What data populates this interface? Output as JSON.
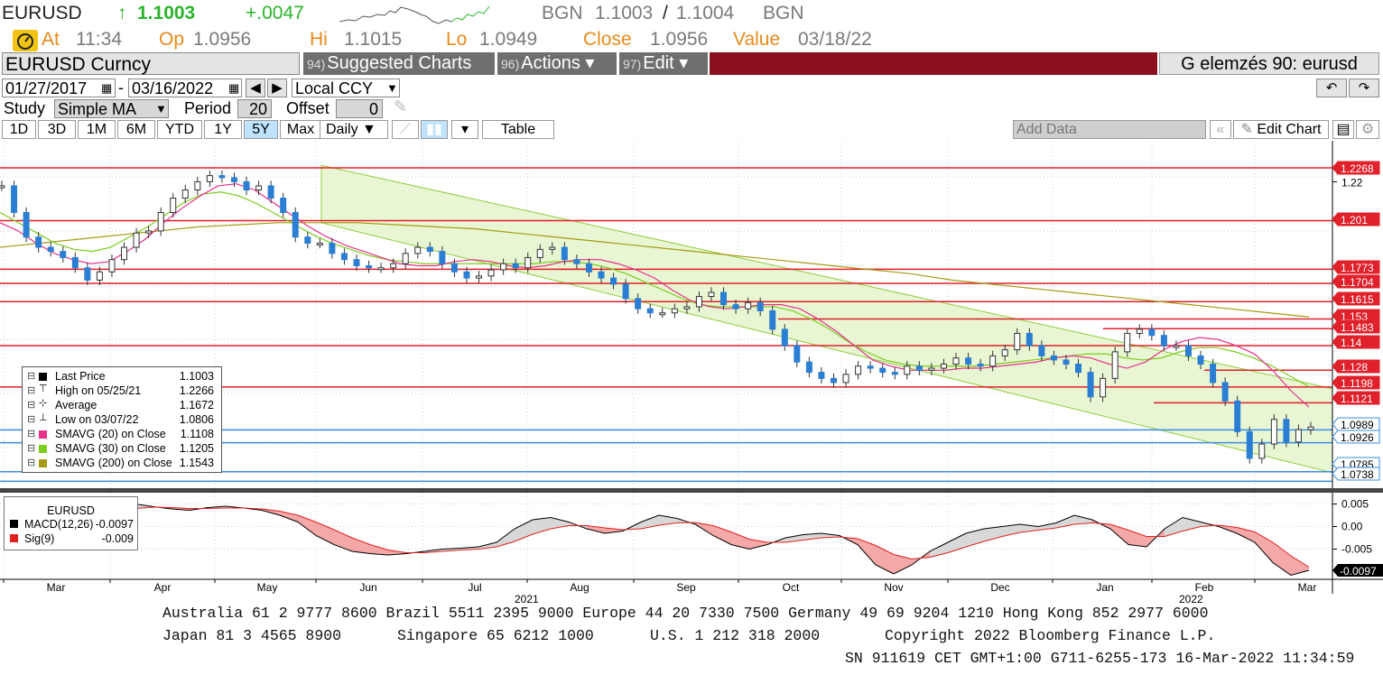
{
  "quote": {
    "ticker": "EURUSD",
    "arrow": "↑",
    "last": "1.1003",
    "change": "+.0047",
    "source": "BGN",
    "bid": "1.1003",
    "ask_sep": "/",
    "ask": "1.1004",
    "source2": "BGN",
    "at_label": "At",
    "at_value": "11:34",
    "op_label": "Op",
    "op_value": "1.0956",
    "hi_label": "Hi",
    "hi_value": "1.1015",
    "lo_label": "Lo",
    "lo_value": "1.0949",
    "close_label": "Close",
    "close_value": "1.0956",
    "value_label": "Value",
    "value_value": "03/18/22"
  },
  "toolbar": {
    "security": "EURUSD Curncy",
    "suggested_num": "94)",
    "suggested_label": "Suggested Charts",
    "actions_num": "96)",
    "actions_label": "Actions ▾",
    "edit_num": "97)",
    "edit_label": "Edit ▾",
    "analysis": "G elemzés 90: eurusd",
    "start_date": "01/27/2017",
    "end_date": "03/16/2022",
    "date_sep": "-",
    "currency": "Local CCY",
    "study_label": "Study",
    "study_value": "Simple MA",
    "period_label": "Period",
    "period_value": "20",
    "offset_label": "Offset",
    "offset_value": "0",
    "ranges": [
      "1D",
      "3D",
      "1M",
      "6M",
      "YTD",
      "1Y",
      "5Y",
      "Max"
    ],
    "active_range": "5Y",
    "frequency": "Daily ▼",
    "table_label": "Table",
    "add_data": "Add Data",
    "edit_chart": "Edit Chart"
  },
  "legend": {
    "rows": [
      {
        "name": "Last Price",
        "value": "1.1003",
        "color": "#000000"
      },
      {
        "name": "High on 05/25/21",
        "value": "1.2266",
        "color": "none"
      },
      {
        "name": "Average",
        "value": "1.1672",
        "color": "none"
      },
      {
        "name": "Low on 03/07/22",
        "value": "1.0806",
        "color": "none"
      },
      {
        "name": "SMAVG (20)  on Close",
        "value": "1.1108",
        "color": "#e8308a"
      },
      {
        "name": "SMAVG (30)  on Close",
        "value": "1.1205",
        "color": "#7ccc1c"
      },
      {
        "name": "SMAVG (200)  on Close",
        "value": "1.1543",
        "color": "#a69a10"
      }
    ]
  },
  "macd_legend": {
    "title": "EURUSD",
    "macd_name": "MACD(12,26)",
    "macd_value": "-0.0097",
    "sig_name": "Sig(9)",
    "sig_value": "-0.009"
  },
  "chart_data": [
    {
      "type": "line",
      "title": "EURUSD",
      "x_months": [
        "Mar",
        "Apr",
        "May",
        "Jun",
        "Jul",
        "Aug",
        "Sep",
        "Oct",
        "Nov",
        "Dec",
        "Jan",
        "Feb",
        "Mar"
      ],
      "year_labels": [
        "2021",
        "2022"
      ],
      "y_ticks": [
        "1.22"
      ],
      "ylim": [
        1.07,
        1.24
      ],
      "last_price_series": [
        1.218,
        1.205,
        1.193,
        1.188,
        1.186,
        1.183,
        1.178,
        1.172,
        1.176,
        1.182,
        1.188,
        1.195,
        1.196,
        1.205,
        1.212,
        1.216,
        1.22,
        1.223,
        1.222,
        1.22,
        1.216,
        1.218,
        1.212,
        1.205,
        1.193,
        1.19,
        1.19,
        1.185,
        1.182,
        1.179,
        1.178,
        1.178,
        1.18,
        1.185,
        1.188,
        1.186,
        1.18,
        1.176,
        1.173,
        1.174,
        1.177,
        1.18,
        1.178,
        1.183,
        1.187,
        1.188,
        1.182,
        1.18,
        1.176,
        1.173,
        1.17,
        1.163,
        1.158,
        1.156,
        1.156,
        1.158,
        1.159,
        1.164,
        1.166,
        1.16,
        1.158,
        1.161,
        1.157,
        1.148,
        1.14,
        1.132,
        1.127,
        1.124,
        1.122,
        1.126,
        1.13,
        1.129,
        1.127,
        1.126,
        1.13,
        1.128,
        1.129,
        1.131,
        1.134,
        1.131,
        1.13,
        1.135,
        1.138,
        1.146,
        1.14,
        1.135,
        1.133,
        1.131,
        1.127,
        1.115,
        1.124,
        1.137,
        1.146,
        1.148,
        1.145,
        1.14,
        1.14,
        1.135,
        1.131,
        1.122,
        1.113,
        1.098,
        1.085,
        1.092,
        1.104,
        1.093,
        1.099,
        1.1003
      ],
      "sma20_series": [
        1.2,
        1.196,
        1.19,
        1.185,
        1.182,
        1.18,
        1.181,
        1.186,
        1.192,
        1.2,
        1.207,
        1.213,
        1.218,
        1.219,
        1.216,
        1.21,
        1.204,
        1.198,
        1.193,
        1.189,
        1.186,
        1.183,
        1.18,
        1.179,
        1.179,
        1.181,
        1.182,
        1.181,
        1.179,
        1.178,
        1.179,
        1.181,
        1.182,
        1.182,
        1.18,
        1.177,
        1.173,
        1.167,
        1.162,
        1.159,
        1.158,
        1.159,
        1.16,
        1.16,
        1.158,
        1.153,
        1.147,
        1.14,
        1.133,
        1.13,
        1.128,
        1.128,
        1.128,
        1.129,
        1.129,
        1.13,
        1.131,
        1.132,
        1.134,
        1.135,
        1.134,
        1.131,
        1.129,
        1.132,
        1.138,
        1.142,
        1.144,
        1.143,
        1.14,
        1.136,
        1.128,
        1.118,
        1.11
      ],
      "sma30_series": [
        1.205,
        1.2,
        1.195,
        1.19,
        1.187,
        1.186,
        1.188,
        1.193,
        1.198,
        1.204,
        1.21,
        1.214,
        1.215,
        1.213,
        1.209,
        1.204,
        1.199,
        1.194,
        1.19,
        1.187,
        1.184,
        1.182,
        1.181,
        1.18,
        1.18,
        1.18,
        1.18,
        1.18,
        1.18,
        1.18,
        1.181,
        1.181,
        1.18,
        1.178,
        1.175,
        1.171,
        1.167,
        1.163,
        1.16,
        1.159,
        1.159,
        1.159,
        1.159,
        1.157,
        1.153,
        1.148,
        1.142,
        1.137,
        1.133,
        1.131,
        1.13,
        1.13,
        1.13,
        1.13,
        1.131,
        1.132,
        1.133,
        1.134,
        1.135,
        1.136,
        1.136,
        1.134,
        1.133,
        1.134,
        1.137,
        1.139,
        1.139,
        1.137,
        1.134,
        1.13,
        1.125,
        1.12
      ],
      "sma200_series": [
        1.188,
        1.19,
        1.192,
        1.194,
        1.196,
        1.198,
        1.199,
        1.2,
        1.2,
        1.2,
        1.199,
        1.198,
        1.197,
        1.195,
        1.193,
        1.191,
        1.189,
        1.187,
        1.185,
        1.183,
        1.181,
        1.179,
        1.177,
        1.175,
        1.172,
        1.17,
        1.168,
        1.166,
        1.164,
        1.162,
        1.16,
        1.158,
        1.156,
        1.154
      ],
      "horizontal_levels": [
        1.2268,
        1.201,
        1.1773,
        1.1704,
        1.1615,
        1.153,
        1.1483,
        1.14,
        1.128,
        1.1198,
        1.1121,
        1.0989,
        1.0926,
        1.0785,
        1.0738
      ],
      "price_labels": [
        "1.2268",
        "1.201",
        "1.1773",
        "1.1704",
        "1.1615",
        "1.153",
        "1.1483",
        "1.14",
        "1.128",
        "1.1198",
        "1.1121",
        "1.0989",
        "1.0926",
        "1.0785",
        "1.0738"
      ],
      "trend_channel": {
        "upper_start": 1.228,
        "upper_end": 1.119,
        "lower_start": 1.2,
        "lower_end": 1.078
      }
    },
    {
      "type": "area",
      "title": "EURUSD",
      "y_ticks": [
        "0.005",
        "0.00",
        "-0.005"
      ],
      "ylim": [
        -0.0125,
        0.0075
      ],
      "last_label": "-0.0097",
      "macd_series": [
        -0.002,
        0.0,
        0.0015,
        0.0028,
        0.004,
        0.0048,
        0.005,
        0.0044,
        0.0039,
        0.0036,
        0.0042,
        0.0045,
        0.0041,
        0.0036,
        0.0025,
        0.001,
        -0.002,
        -0.004,
        -0.0055,
        -0.006,
        -0.0063,
        -0.006,
        -0.0055,
        -0.005,
        -0.0048,
        -0.0045,
        -0.0035,
        -0.0005,
        0.0015,
        0.002,
        0.001,
        -0.0005,
        -0.0015,
        -0.001,
        0.001,
        0.0025,
        0.0018,
        0.0005,
        -0.002,
        -0.004,
        -0.005,
        -0.004,
        -0.0025,
        -0.0018,
        -0.0015,
        -0.002,
        -0.004,
        -0.0085,
        -0.0105,
        -0.0085,
        -0.0055,
        -0.0035,
        -0.0015,
        -0.0005,
        0.0,
        0.0005,
        0.0,
        0.0008,
        0.0025,
        0.0015,
        -0.0005,
        -0.004,
        -0.0045,
        -0.0005,
        0.002,
        0.001,
        0.0,
        -0.0015,
        -0.0035,
        -0.008,
        -0.0108,
        -0.0097
      ],
      "signal_series": [
        -0.004,
        -0.0025,
        -0.001,
        0.0005,
        0.0018,
        0.003,
        0.004,
        0.0043,
        0.0042,
        0.004,
        0.004,
        0.0041,
        0.0041,
        0.0039,
        0.0034,
        0.0025,
        0.001,
        -0.0007,
        -0.0025,
        -0.004,
        -0.0052,
        -0.0058,
        -0.0058,
        -0.0055,
        -0.0052,
        -0.005,
        -0.0045,
        -0.0033,
        -0.0017,
        -0.0005,
        0.0002,
        0.0002,
        -0.0003,
        -0.0007,
        -0.0005,
        0.0003,
        0.0008,
        0.0009,
        0.0002,
        -0.0012,
        -0.0028,
        -0.0035,
        -0.0035,
        -0.003,
        -0.0025,
        -0.0023,
        -0.0027,
        -0.0042,
        -0.0062,
        -0.0072,
        -0.0068,
        -0.0058,
        -0.0045,
        -0.0033,
        -0.0022,
        -0.0013,
        -0.0008,
        -0.0003,
        0.0005,
        0.0008,
        0.0005,
        -0.0008,
        -0.0022,
        -0.0022,
        -0.001,
        0.0,
        0.0003,
        -0.0002,
        -0.0012,
        -0.0035,
        -0.0065,
        -0.009
      ]
    }
  ],
  "footer": {
    "line1": "Australia 61 2 9777 8600 Brazil 5511 2395 9000 Europe 44 20 7330 7500 Germany 49 69 9204 1210 Hong Kong 852 2977 6000",
    "line2a": "Japan 81 3 4565 8900",
    "line2b": "Singapore 65 6212 1000",
    "line2c": "U.S. 1 212 318 2000",
    "line2d": "Copyright 2022 Bloomberg Finance L.P.",
    "line3": "SN 911619 CET  GMT+1:00 G711-6255-173 16-Mar-2022 11:34:59"
  }
}
